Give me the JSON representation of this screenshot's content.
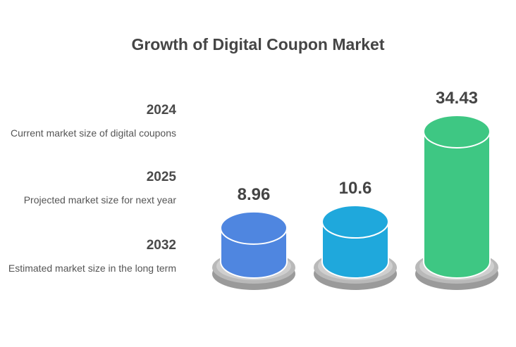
{
  "chart_data": {
    "type": "bar",
    "title": "Growth of Digital Coupon Market",
    "categories": [
      "2024",
      "2025",
      "2032"
    ],
    "values": [
      8.96,
      10.6,
      34.43
    ],
    "descriptions": [
      "Current market size of digital coupons",
      "Projected market size for next year",
      "Estimated market size in the long term"
    ],
    "colors": [
      "#4f86e0",
      "#1fa8dc",
      "#3ec783"
    ]
  }
}
